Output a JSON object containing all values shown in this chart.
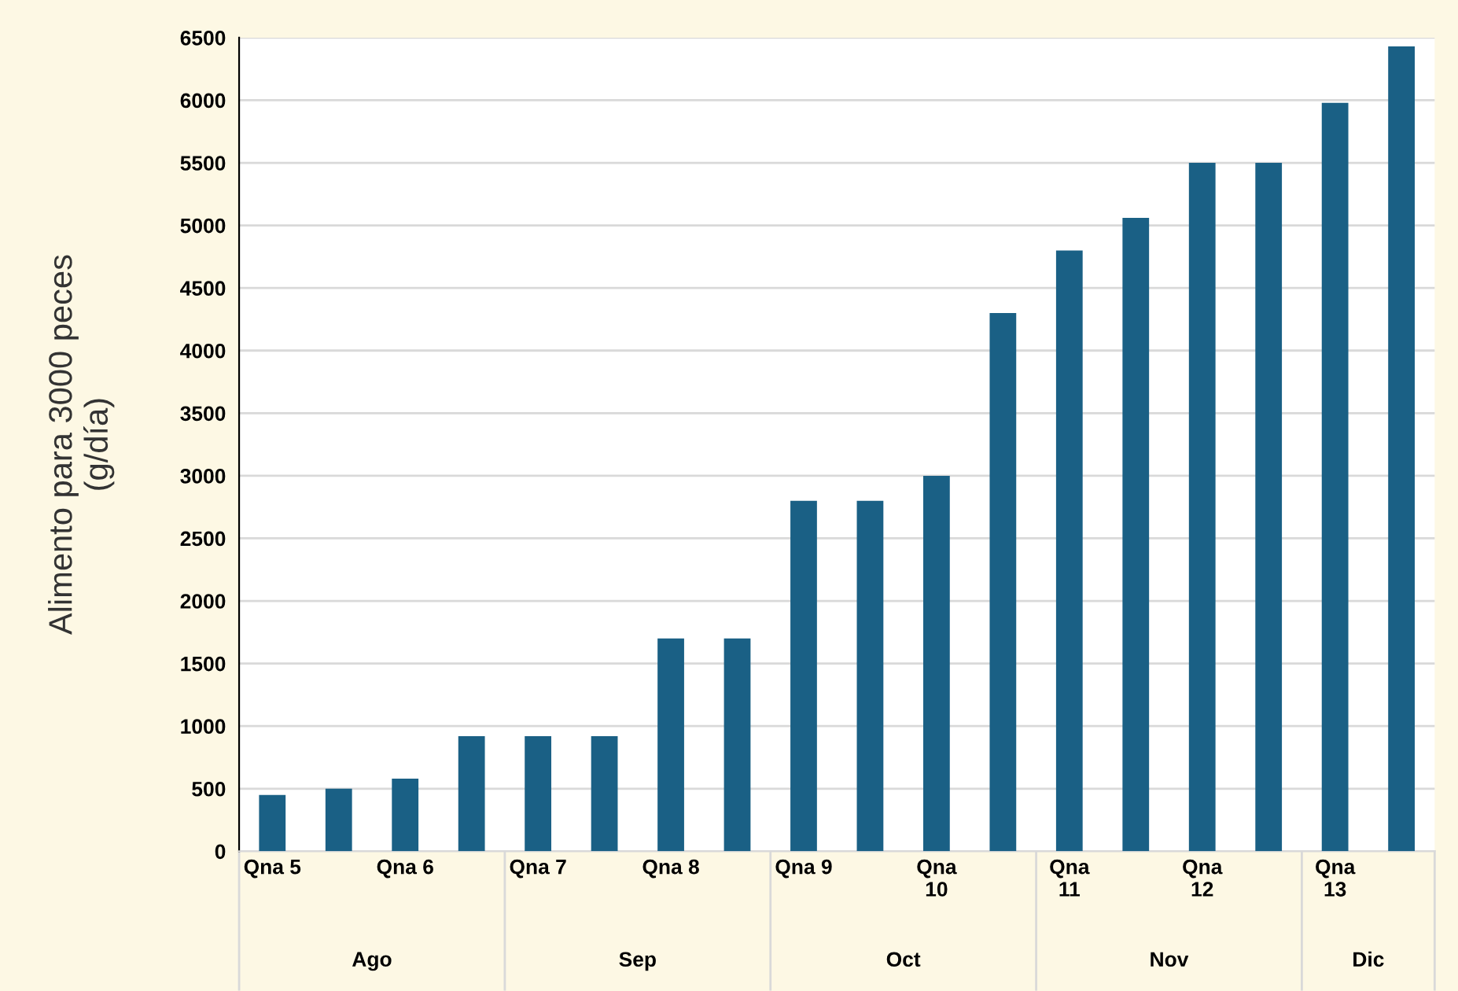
{
  "chart_data": {
    "type": "bar",
    "ylabel": "Alimento para 3000 peces\n(g/día)",
    "categories": [
      "Qna 5",
      null,
      "Qna 6",
      null,
      "Qna 7",
      null,
      "Qna 8",
      null,
      "Qna 9",
      null,
      "Qna 10",
      null,
      "Qna 11",
      null,
      "Qna 12",
      null,
      "Qna 13",
      null
    ],
    "values": [
      450,
      500,
      580,
      920,
      920,
      920,
      1700,
      1700,
      2800,
      2800,
      3000,
      4300,
      4800,
      5060,
      5500,
      5500,
      5980,
      6430
    ],
    "color": "#1a6085",
    "ylim": [
      0,
      6500
    ],
    "yticks": [
      0,
      500,
      1000,
      1500,
      2000,
      2500,
      3000,
      3500,
      4000,
      4500,
      5000,
      5500,
      6000,
      6500
    ],
    "grid": "y",
    "annotations": [
      "Ago",
      "Sep",
      "Oct",
      "Nov",
      "Dic"
    ]
  }
}
